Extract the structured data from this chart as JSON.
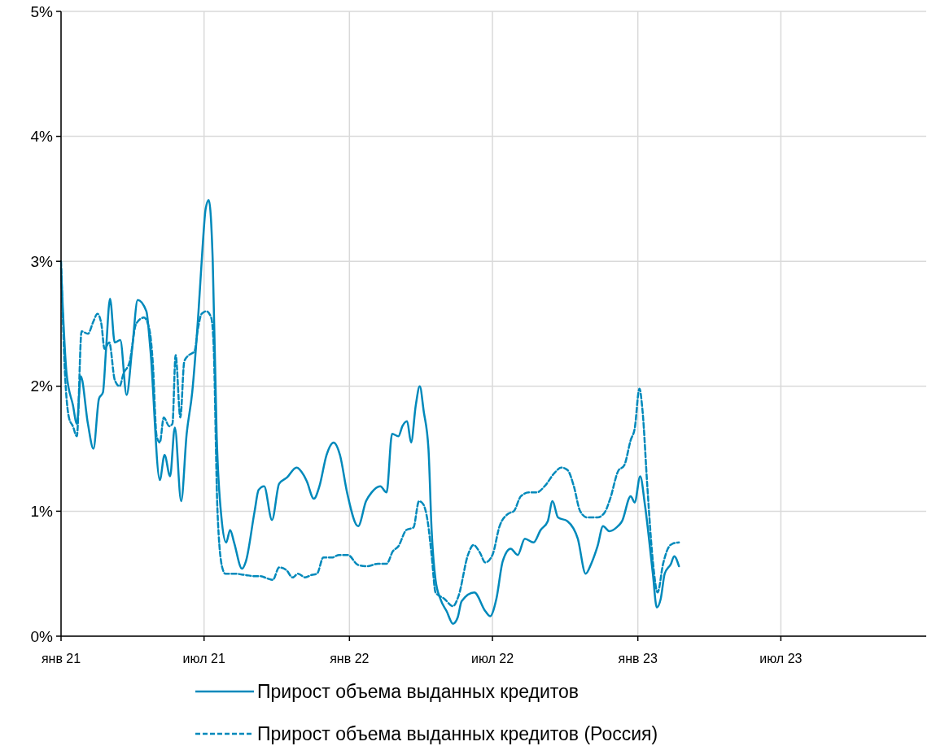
{
  "chart_data": {
    "type": "line",
    "xlim": [
      "2021-01-01",
      "2024-01-01"
    ],
    "xticks": [
      {
        "value": "2021-01-01",
        "label": "янв 21"
      },
      {
        "value": "2021-07-01",
        "label": "июл 21"
      },
      {
        "value": "2022-01-01",
        "label": "янв 22"
      },
      {
        "value": "2022-07-01",
        "label": "июл 22"
      },
      {
        "value": "2023-01-01",
        "label": "янв 23"
      },
      {
        "value": "2023-07-01",
        "label": "июл 23"
      }
    ],
    "ylim": [
      0,
      5
    ],
    "yticks": [
      {
        "value": 0,
        "label": "0%"
      },
      {
        "value": 1,
        "label": "1%"
      },
      {
        "value": 2,
        "label": "2%"
      },
      {
        "value": 3,
        "label": "3%"
      },
      {
        "value": 4,
        "label": "4%"
      },
      {
        "value": 5,
        "label": "5%"
      }
    ],
    "grid": true,
    "legend": "bottom",
    "marker": "none",
    "series": [
      {
        "name": "Прирост объема выданных кредитов",
        "color": "#0089bb",
        "line_style": "solid",
        "x": [
          "2021-01-01",
          "2021-01-08",
          "2021-01-16",
          "2021-01-21",
          "2021-01-26",
          "2021-02-04",
          "2021-02-11",
          "2021-02-18",
          "2021-02-23",
          "2021-02-27",
          "2021-03-04",
          "2021-03-10",
          "2021-03-17",
          "2021-03-25",
          "2021-04-01",
          "2021-04-08",
          "2021-04-19",
          "2021-04-24",
          "2021-05-06",
          "2021-05-12",
          "2021-05-19",
          "2021-05-25",
          "2021-06-02",
          "2021-06-09",
          "2021-06-16",
          "2021-06-24",
          "2021-06-29",
          "2021-07-03",
          "2021-07-07",
          "2021-07-12",
          "2021-07-17",
          "2021-07-23",
          "2021-07-29",
          "2021-08-03",
          "2021-08-08",
          "2021-08-18",
          "2021-08-23",
          "2021-09-03",
          "2021-09-08",
          "2021-09-15",
          "2021-09-25",
          "2021-10-04",
          "2021-10-14",
          "2021-10-26",
          "2021-11-04",
          "2021-11-08",
          "2021-11-17",
          "2021-11-24",
          "2021-12-03",
          "2021-12-12",
          "2021-12-20",
          "2021-12-29",
          "2022-01-12",
          "2022-01-22",
          "2022-01-29",
          "2022-02-09",
          "2022-02-17",
          "2022-02-24",
          "2022-03-04",
          "2022-03-09",
          "2022-03-15",
          "2022-03-20",
          "2022-03-26",
          "2022-03-31",
          "2022-04-05",
          "2022-04-11",
          "2022-04-15",
          "2022-04-20",
          "2022-04-26",
          "2022-05-04",
          "2022-05-12",
          "2022-05-18",
          "2022-05-23",
          "2022-06-08",
          "2022-06-22",
          "2022-06-28",
          "2022-07-06",
          "2022-07-14",
          "2022-07-24",
          "2022-08-02",
          "2022-08-11",
          "2022-08-22",
          "2022-08-31",
          "2022-09-09",
          "2022-09-15",
          "2022-09-22",
          "2022-10-04",
          "2022-10-17",
          "2022-10-27",
          "2022-11-03",
          "2022-11-11",
          "2022-11-18",
          "2022-11-26",
          "2022-12-05",
          "2022-12-12",
          "2022-12-23",
          "2022-12-28",
          "2023-01-04",
          "2023-01-10",
          "2023-01-20",
          "2023-01-25",
          "2023-01-30",
          "2023-02-04",
          "2023-02-12",
          "2023-02-16",
          "2023-02-22"
        ],
        "values": [
          2.95,
          2.1,
          1.85,
          1.7,
          2.08,
          1.7,
          1.5,
          1.9,
          1.95,
          2.3,
          2.7,
          2.35,
          2.37,
          1.93,
          2.3,
          2.69,
          2.6,
          2.3,
          1.25,
          1.45,
          1.28,
          1.67,
          1.08,
          1.62,
          1.95,
          2.6,
          3.1,
          3.42,
          3.49,
          3.0,
          1.6,
          0.95,
          0.75,
          0.85,
          0.75,
          0.54,
          0.6,
          1.0,
          1.17,
          1.2,
          0.93,
          1.22,
          1.27,
          1.35,
          1.29,
          1.24,
          1.1,
          1.2,
          1.45,
          1.55,
          1.45,
          1.15,
          0.88,
          1.08,
          1.15,
          1.2,
          1.15,
          1.62,
          1.6,
          1.68,
          1.72,
          1.55,
          1.85,
          2.0,
          1.8,
          1.5,
          0.85,
          0.45,
          0.3,
          0.2,
          0.1,
          0.15,
          0.28,
          0.35,
          0.2,
          0.16,
          0.3,
          0.6,
          0.7,
          0.65,
          0.78,
          0.75,
          0.85,
          0.92,
          1.08,
          0.95,
          0.92,
          0.78,
          0.5,
          0.58,
          0.72,
          0.88,
          0.84,
          0.87,
          0.92,
          1.12,
          1.07,
          1.28,
          1.05,
          0.5,
          0.23,
          0.3,
          0.5,
          0.58,
          0.64,
          0.56
        ]
      },
      {
        "name": "Прирост объема выданных кредитов (Россия)",
        "color": "#0089bb",
        "line_style": "dashed",
        "x": [
          "2021-01-01",
          "2021-01-06",
          "2021-01-11",
          "2021-01-16",
          "2021-01-21",
          "2021-01-27",
          "2021-02-04",
          "2021-02-11",
          "2021-02-16",
          "2021-02-21",
          "2021-02-25",
          "2021-03-03",
          "2021-03-10",
          "2021-03-16",
          "2021-03-21",
          "2021-03-29",
          "2021-04-06",
          "2021-04-16",
          "2021-04-23",
          "2021-04-27",
          "2021-05-02",
          "2021-05-06",
          "2021-05-11",
          "2021-05-18",
          "2021-05-22",
          "2021-05-26",
          "2021-06-01",
          "2021-06-06",
          "2021-06-12",
          "2021-06-19",
          "2021-06-23",
          "2021-06-28",
          "2021-07-04",
          "2021-07-10",
          "2021-07-13",
          "2021-07-18",
          "2021-07-24",
          "2021-07-28",
          "2021-08-08",
          "2021-08-22",
          "2021-09-03",
          "2021-09-10",
          "2021-09-20",
          "2021-09-26",
          "2021-10-04",
          "2021-10-13",
          "2021-10-21",
          "2021-10-28",
          "2021-11-06",
          "2021-11-14",
          "2021-11-21",
          "2021-11-29",
          "2021-12-10",
          "2021-12-19",
          "2021-12-30",
          "2022-01-12",
          "2022-01-24",
          "2022-02-06",
          "2022-02-17",
          "2022-02-25",
          "2022-03-04",
          "2022-03-14",
          "2022-03-23",
          "2022-03-30",
          "2022-04-04",
          "2022-04-10",
          "2022-04-15",
          "2022-04-20",
          "2022-05-01",
          "2022-05-12",
          "2022-05-19",
          "2022-05-31",
          "2022-06-07",
          "2022-06-15",
          "2022-06-22",
          "2022-07-01",
          "2022-07-10",
          "2022-07-21",
          "2022-07-28",
          "2022-08-06",
          "2022-08-16",
          "2022-08-26",
          "2022-09-05",
          "2022-09-18",
          "2022-09-26",
          "2022-10-04",
          "2022-10-12",
          "2022-10-20",
          "2022-10-29",
          "2022-11-11",
          "2022-11-20",
          "2022-11-27",
          "2022-12-07",
          "2022-12-15",
          "2022-12-23",
          "2022-12-28",
          "2023-01-03",
          "2023-01-07",
          "2023-01-13",
          "2023-01-20",
          "2023-01-26",
          "2023-02-02",
          "2023-02-08",
          "2023-02-14",
          "2023-02-22"
        ],
        "values": [
          3.0,
          2.1,
          1.75,
          1.68,
          1.6,
          2.44,
          2.42,
          2.52,
          2.58,
          2.5,
          2.3,
          2.35,
          2.05,
          2.0,
          2.1,
          2.2,
          2.5,
          2.55,
          2.45,
          2.2,
          1.6,
          1.55,
          1.75,
          1.68,
          1.7,
          2.25,
          1.75,
          2.2,
          2.25,
          2.28,
          2.45,
          2.58,
          2.6,
          2.55,
          2.35,
          1.0,
          0.55,
          0.5,
          0.5,
          0.49,
          0.48,
          0.48,
          0.46,
          0.45,
          0.55,
          0.53,
          0.47,
          0.5,
          0.47,
          0.49,
          0.5,
          0.63,
          0.63,
          0.65,
          0.65,
          0.57,
          0.56,
          0.58,
          0.58,
          0.68,
          0.72,
          0.85,
          0.87,
          1.08,
          1.06,
          0.92,
          0.65,
          0.35,
          0.3,
          0.24,
          0.32,
          0.65,
          0.73,
          0.67,
          0.59,
          0.65,
          0.88,
          0.98,
          1.0,
          1.12,
          1.15,
          1.15,
          1.2,
          1.31,
          1.35,
          1.33,
          1.2,
          1.0,
          0.95,
          0.95,
          0.99,
          1.1,
          1.32,
          1.37,
          1.57,
          1.66,
          1.98,
          1.8,
          1.2,
          0.6,
          0.35,
          0.58,
          0.7,
          0.74,
          0.75
        ]
      }
    ]
  }
}
